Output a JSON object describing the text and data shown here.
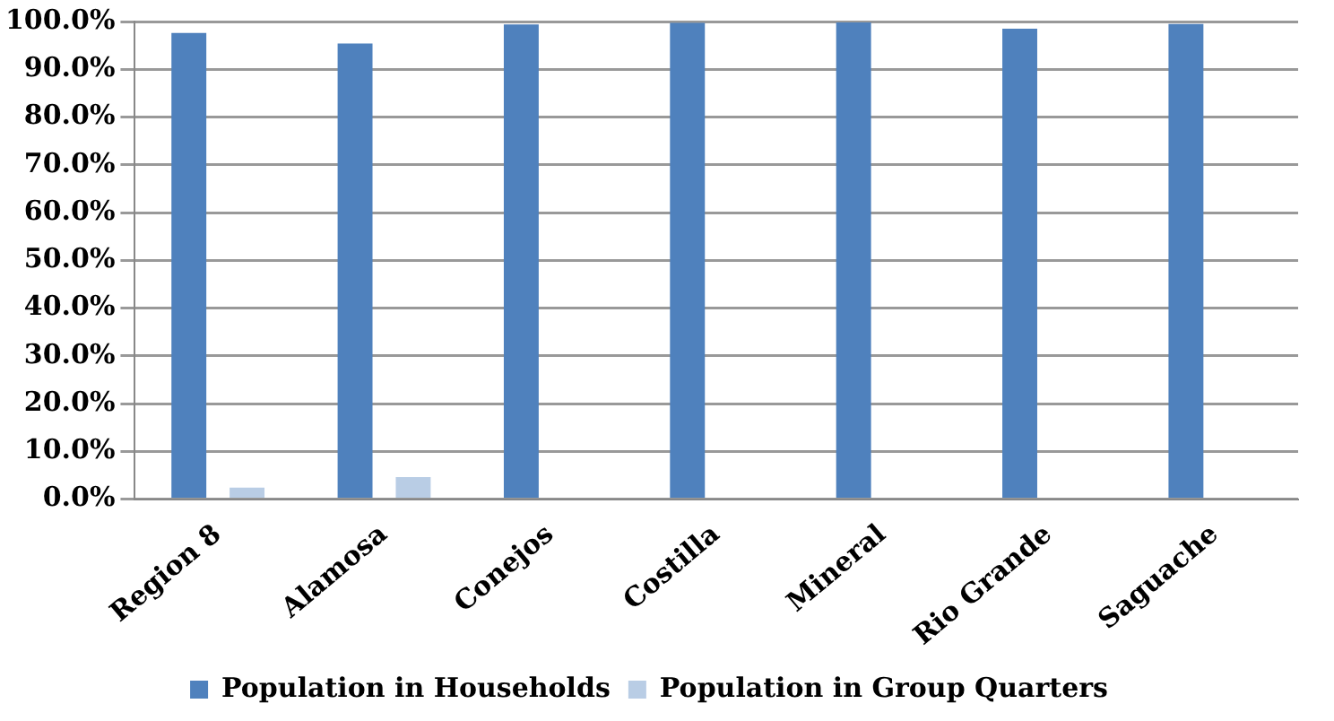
{
  "chart_data": {
    "type": "bar",
    "categories": [
      "Region 8",
      "Alamosa",
      "Conejos",
      "Costilla",
      "Mineral",
      "Rio Grande",
      "Saguache"
    ],
    "series": [
      {
        "name": "Population in Households",
        "color": "#4f81bd",
        "values": [
          97.6,
          95.4,
          99.4,
          99.7,
          99.8,
          98.5,
          99.5
        ]
      },
      {
        "name": "Population in Group Quarters",
        "color": "#b9cde5",
        "values": [
          2.4,
          4.6,
          null,
          null,
          null,
          null,
          null
        ]
      }
    ],
    "ylim": [
      0,
      100
    ],
    "yticks": [
      {
        "value": 0,
        "label": "0.0%"
      },
      {
        "value": 10,
        "label": "10.0%"
      },
      {
        "value": 20,
        "label": "20.0%"
      },
      {
        "value": 30,
        "label": "30.0%"
      },
      {
        "value": 40,
        "label": "40.0%"
      },
      {
        "value": 50,
        "label": "50.0%"
      },
      {
        "value": 60,
        "label": "60.0%"
      },
      {
        "value": 70,
        "label": "70.0%"
      },
      {
        "value": 80,
        "label": "80.0%"
      },
      {
        "value": 90,
        "label": "90.0%"
      },
      {
        "value": 100,
        "label": "100.0%"
      }
    ],
    "grid": "y",
    "legend": "bottom"
  }
}
